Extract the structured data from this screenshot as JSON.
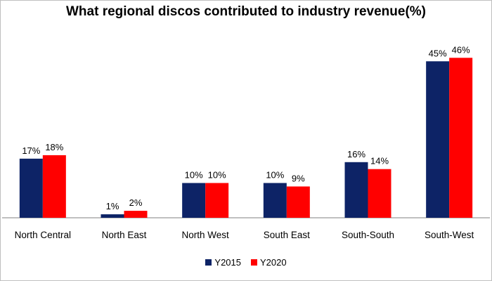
{
  "chart_data": {
    "type": "bar",
    "title": "What regional discos contributed to industry revenue(%)",
    "categories": [
      "North Central",
      "North East",
      "North West",
      "South East",
      "South-South",
      "South-West"
    ],
    "series": [
      {
        "name": "Y2015",
        "values": [
          17,
          1,
          10,
          10,
          16,
          45
        ],
        "labels": [
          "17%",
          "1%",
          "10%",
          "10%",
          "16%",
          "45%"
        ]
      },
      {
        "name": "Y2020",
        "values": [
          18,
          2,
          10,
          9,
          14,
          46
        ],
        "labels": [
          "18%",
          "2%",
          "10%",
          "9%",
          "14%",
          "46%"
        ]
      }
    ],
    "colors": [
      "#0d2366",
      "#ff0000"
    ],
    "ylim": [
      0,
      50
    ],
    "legend_position": "bottom",
    "grid": false,
    "xlabel": "",
    "ylabel": ""
  }
}
